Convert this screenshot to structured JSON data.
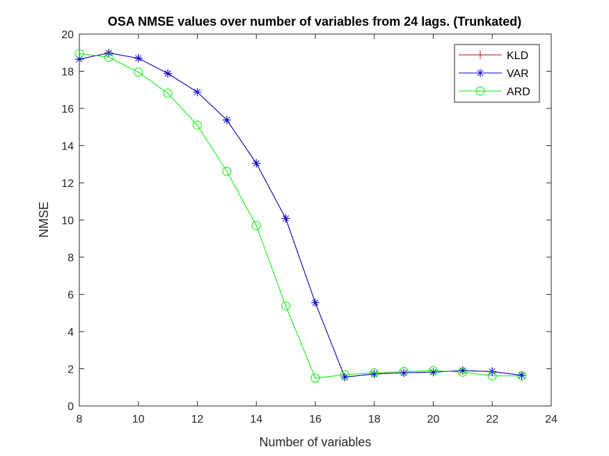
{
  "chart_data": {
    "type": "line",
    "title": "OSA NMSE values over number of variables from 24 lags. (Trunkated)",
    "xlabel": "Number of variables",
    "ylabel": "NMSE",
    "xlim": [
      8,
      24
    ],
    "ylim": [
      0,
      20
    ],
    "xticks": [
      "8",
      "10",
      "12",
      "14",
      "16",
      "18",
      "20",
      "22",
      "24"
    ],
    "yticks": [
      "0",
      "2",
      "4",
      "6",
      "8",
      "10",
      "12",
      "14",
      "16",
      "18",
      "20"
    ],
    "grid": false,
    "legend_position": "top-right",
    "x": [
      8,
      9,
      10,
      11,
      12,
      13,
      14,
      15,
      16,
      17,
      18,
      19,
      20,
      21,
      22,
      23
    ],
    "series": [
      {
        "name": "KLD",
        "color": "#cc0000",
        "marker": "plus",
        "values": [
          18.65,
          18.98,
          18.7,
          17.88,
          16.88,
          15.38,
          13.05,
          10.08,
          5.55,
          1.55,
          1.72,
          1.78,
          1.82,
          1.9,
          1.85,
          1.65
        ]
      },
      {
        "name": "VAR",
        "color": "#0000cc",
        "marker": "asterisk",
        "values": [
          18.65,
          18.98,
          18.7,
          17.88,
          16.88,
          15.38,
          13.05,
          10.08,
          5.55,
          1.55,
          1.72,
          1.78,
          1.82,
          1.9,
          1.85,
          1.65
        ]
      },
      {
        "name": "ARD",
        "color": "#00ee00",
        "marker": "circle",
        "values": [
          18.95,
          18.75,
          17.95,
          16.82,
          15.1,
          12.62,
          9.7,
          5.38,
          1.5,
          1.68,
          1.78,
          1.85,
          1.9,
          1.82,
          1.62,
          1.62
        ]
      }
    ]
  }
}
